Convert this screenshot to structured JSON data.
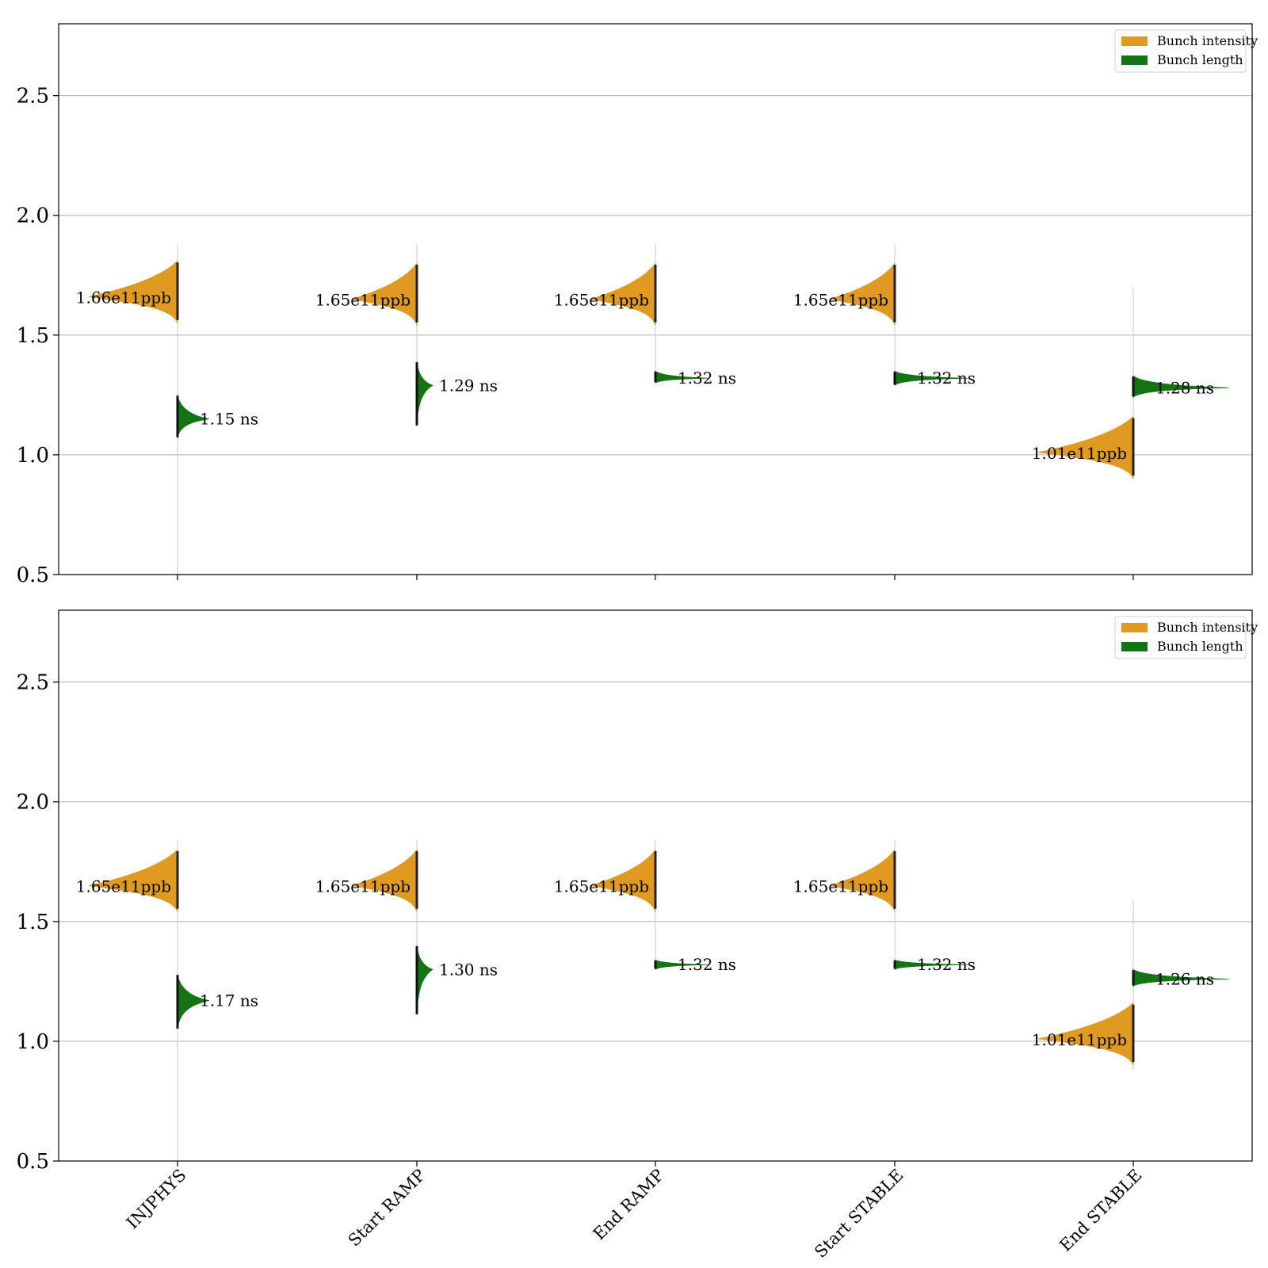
{
  "colors": {
    "intensity": "#e09a22",
    "length": "#127412",
    "grid": "#b0b0b0",
    "axis": "#000000"
  },
  "legend": {
    "placement": "upper right",
    "items": [
      "Bunch intensity",
      "Bunch length"
    ]
  },
  "chart_data": [
    {
      "type": "violin",
      "panel": "top",
      "ylim": [
        0.5,
        2.8
      ],
      "yticks": [
        0.5,
        1.0,
        1.5,
        2.0,
        2.5
      ],
      "ytick_labels": [
        "0.5",
        "1.0",
        "1.5",
        "2.0",
        "2.5"
      ],
      "grid": "y",
      "categories": [
        "INJPHYS",
        "Start RAMP",
        "End RAMP",
        "Start STABLE",
        "End STABLE"
      ],
      "series": [
        {
          "name": "Bunch intensity",
          "side": "left",
          "values": [
            1.66,
            1.65,
            1.65,
            1.65,
            1.01
          ],
          "labels": [
            "1.66e11ppb",
            "1.65e11ppb",
            "1.65e11ppb",
            "1.65e11ppb",
            "1.01e11ppb"
          ],
          "range": [
            [
              1.43,
              1.88
            ],
            [
              1.43,
              1.88
            ],
            [
              1.41,
              1.88
            ],
            [
              1.41,
              1.88
            ],
            [
              0.9,
              1.7
            ]
          ]
        },
        {
          "name": "Bunch length",
          "side": "right",
          "values": [
            1.15,
            1.29,
            1.32,
            1.32,
            1.28
          ],
          "labels": [
            "1.15 ns",
            "1.29 ns",
            "1.32 ns",
            "1.32 ns",
            "1.28 ns"
          ],
          "range": [
            [
              1.07,
              1.25
            ],
            [
              1.12,
              1.39
            ],
            [
              1.3,
              1.35
            ],
            [
              1.29,
              1.35
            ],
            [
              1.24,
              1.33
            ]
          ]
        }
      ]
    },
    {
      "type": "violin",
      "panel": "bottom",
      "ylim": [
        0.5,
        2.8
      ],
      "yticks": [
        0.5,
        1.0,
        1.5,
        2.0,
        2.5
      ],
      "ytick_labels": [
        "0.5",
        "1.0",
        "1.5",
        "2.0",
        "2.5"
      ],
      "grid": "y",
      "categories": [
        "INJPHYS",
        "Start RAMP",
        "End RAMP",
        "Start STABLE",
        "End STABLE"
      ],
      "series": [
        {
          "name": "Bunch intensity",
          "side": "left",
          "values": [
            1.65,
            1.65,
            1.65,
            1.65,
            1.01
          ],
          "labels": [
            "1.65e11ppb",
            "1.65e11ppb",
            "1.65e11ppb",
            "1.65e11ppb",
            "1.01e11ppb"
          ],
          "range": [
            [
              1.43,
              1.84
            ],
            [
              1.43,
              1.84
            ],
            [
              1.39,
              1.84
            ],
            [
              1.39,
              1.84
            ],
            [
              0.88,
              1.59
            ]
          ]
        },
        {
          "name": "Bunch length",
          "side": "right",
          "values": [
            1.17,
            1.3,
            1.32,
            1.32,
            1.26
          ],
          "labels": [
            "1.17 ns",
            "1.30 ns",
            "1.32 ns",
            "1.32 ns",
            "1.26 ns"
          ],
          "range": [
            [
              1.05,
              1.28
            ],
            [
              1.11,
              1.4
            ],
            [
              1.3,
              1.34
            ],
            [
              1.3,
              1.34
            ],
            [
              1.23,
              1.3
            ]
          ]
        }
      ]
    }
  ]
}
